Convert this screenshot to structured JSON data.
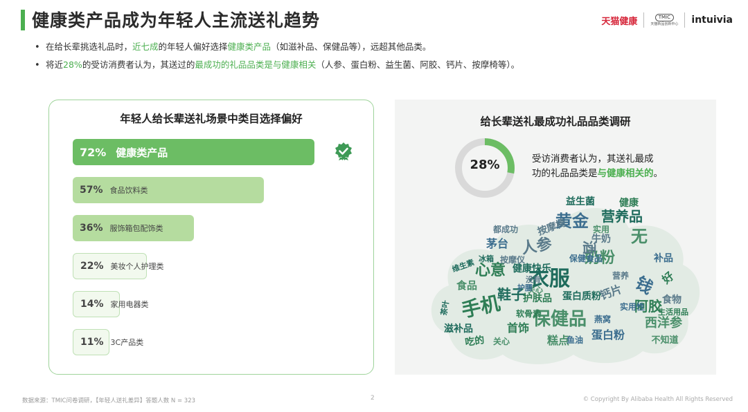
{
  "header": {
    "title": "健康类产品成为年轻人主流送礼趋势",
    "logos": {
      "tmall_health": "天猫健康",
      "tmic": "TMIC",
      "tmic_sub": "天猫新品创新中心",
      "intuivia": "intuivia"
    }
  },
  "bullets": [
    {
      "marker": "•",
      "p1": "在给长辈挑选礼品时，",
      "h1": "近七成",
      "p2": "的年轻人偏好选择",
      "h2": "健康类产品",
      "p3": "（如滋补品、保健品等），远超其他品类。"
    },
    {
      "marker": "•",
      "p1": "将近",
      "h1": "28%",
      "p2": "的受访消费者认为，其送过的",
      "h2": "最成功的礼品品类是与健康相关",
      "p3": "（人参、蛋白粉、益生菌、阿胶、钙片、按摩椅等）。"
    }
  ],
  "chart_data": [
    {
      "type": "bar",
      "orientation": "horizontal",
      "title": "年轻人给长辈送礼场景中类目选择偏好",
      "categories": [
        "健康类产品",
        "食品饮料类",
        "服饰箱包配饰类",
        "美妆个人护理类",
        "家用电器类",
        "3C产品类"
      ],
      "values": [
        72,
        57,
        36,
        22,
        14,
        11
      ],
      "value_labels": [
        "72%",
        "57%",
        "36%",
        "22%",
        "14%",
        "11%"
      ],
      "unit": "%",
      "xlim": [
        0,
        100
      ],
      "colors": {
        "top": "#6cbd64",
        "mid": "#b5dc9f",
        "low": "#f2f9ee"
      },
      "highlight_icon": "check-badge-icon"
    },
    {
      "type": "pie",
      "title": "给长辈送礼最成功礼品品类调研",
      "values": [
        28,
        72
      ],
      "center_label": "28%",
      "colors": [
        "#6cbd64",
        "#d9d9d9"
      ],
      "note_plain": "受访消费者认为，其送礼最成",
      "note_line2_plain": "功的礼品品类是",
      "note_highlight": "与健康相关的",
      "note_end": "。"
    }
  ],
  "wordcloud": {
    "colors": [
      "#1e6b5c",
      "#2e7d55",
      "#4a8f6a",
      "#3c6e8f",
      "#5a7a8a"
    ],
    "words": [
      "衣服",
      "手机",
      "保健品",
      "黄金",
      "人参",
      "鞋子",
      "心意",
      "奶粉",
      "钱",
      "酒",
      "营养品",
      "阿胶",
      "西洋参",
      "蛋白粉",
      "钙片",
      "蛋白质粉",
      "首饰",
      "食品",
      "茅台",
      "按摩椅",
      "益生菌",
      "健康",
      "无",
      "补品",
      "牛奶",
      "健康快乐",
      "护肤品",
      "糕点",
      "燕窝",
      "食物",
      "滋补品",
      "吃的",
      "关心",
      "鱼油",
      "按摩仪",
      "维生素",
      "生活用品",
      "不知道",
      "实用性",
      "都成功",
      "冰箱",
      "好",
      "实用",
      "保健食品",
      "营养",
      "茶叶",
      "软骨素",
      "关心",
      "护腰",
      "没有"
    ]
  },
  "footer": {
    "source": "数据来源：TMIC问卷调研，【年轻人送礼差异】答题人数 N = 323",
    "page": "2",
    "copyright": "© Copyright By Alibaba Health All Rights Reserved"
  }
}
